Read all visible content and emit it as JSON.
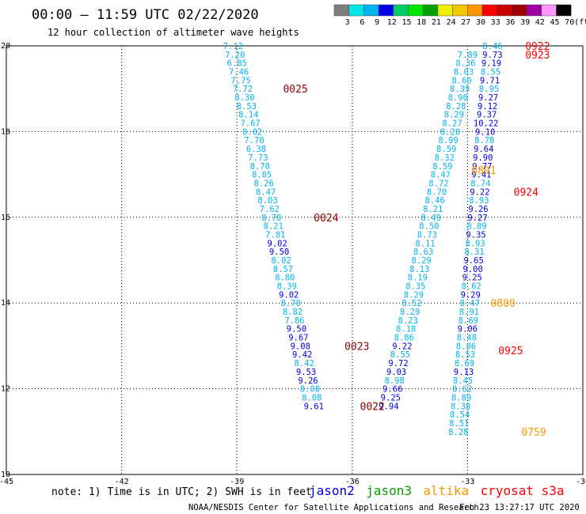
{
  "title": "00:00 – 11:59 UTC 02/22/2020",
  "subtitle": "12 hour collection of altimeter wave heights",
  "color_scale": {
    "ticks": [
      "3",
      "6",
      "9",
      "12",
      "15",
      "18",
      "21",
      "24",
      "27",
      "30",
      "33",
      "36",
      "39",
      "42",
      "45",
      "70"
    ],
    "unit": "(ft)",
    "colors": [
      "#7d7d7d",
      "#00e6e6",
      "#00b4f0",
      "#0000e6",
      "#00cd66",
      "#00e600",
      "#00a000",
      "#f0f000",
      "#f0c800",
      "#ff9600",
      "#ff0000",
      "#c80000",
      "#a00000",
      "#a000a0",
      "#ff96ff",
      "#000000"
    ]
  },
  "chart_data": {
    "type": "scatter",
    "xlim": [
      -45,
      -30
    ],
    "ylim": [
      10,
      20
    ],
    "x_ticks": [
      "-45",
      "-42",
      "-39",
      "-36",
      "-33",
      "-30"
    ],
    "y_ticks": [
      "10",
      "12",
      "14",
      "16",
      "18",
      "20"
    ],
    "grid": true,
    "colors_by_value": [
      {
        "max": 9,
        "color": "#00b4f0"
      },
      {
        "max": 12,
        "color": "#0000e6"
      }
    ],
    "tracks": [
      {
        "points": [
          [
            -39.1,
            20.0,
            "7.12"
          ],
          [
            -39.05,
            19.8,
            "7.20"
          ],
          [
            -39.0,
            19.6,
            "6.85"
          ],
          [
            -38.95,
            19.4,
            "7.46"
          ],
          [
            -38.9,
            19.2,
            "7.75"
          ],
          [
            -38.85,
            19.0,
            "7.72"
          ],
          [
            -38.8,
            18.8,
            "8.30"
          ],
          [
            -38.75,
            18.6,
            "8.53"
          ],
          [
            -38.7,
            18.4,
            "8.14"
          ],
          [
            -38.65,
            18.2,
            "7.67"
          ],
          [
            -38.6,
            18.0,
            "8.02"
          ],
          [
            -38.55,
            17.8,
            "7.70"
          ],
          [
            -38.5,
            17.6,
            "6.38"
          ],
          [
            -38.45,
            17.4,
            "7.73"
          ],
          [
            -38.4,
            17.2,
            "8.70"
          ],
          [
            -38.35,
            17.0,
            "8.05"
          ],
          [
            -38.3,
            16.8,
            "8.26"
          ],
          [
            -38.25,
            16.6,
            "8.47"
          ],
          [
            -38.2,
            16.4,
            "8.03"
          ],
          [
            -38.15,
            16.2,
            "7.62"
          ],
          [
            -38.1,
            16.0,
            "8.70"
          ],
          [
            -38.05,
            15.8,
            "8.21"
          ],
          [
            -38.0,
            15.6,
            "7.81"
          ],
          [
            -37.95,
            15.4,
            "9.02"
          ],
          [
            -37.9,
            15.2,
            "9.50"
          ],
          [
            -37.85,
            15.0,
            "8.02"
          ],
          [
            -37.8,
            14.8,
            "8.57"
          ],
          [
            -37.75,
            14.6,
            "8.80"
          ],
          [
            -37.7,
            14.4,
            "8.39"
          ],
          [
            -37.65,
            14.2,
            "9.02"
          ],
          [
            -37.6,
            14.0,
            "8.70"
          ],
          [
            -37.55,
            13.8,
            "8.82"
          ],
          [
            -37.5,
            13.6,
            "7.86"
          ],
          [
            -37.45,
            13.4,
            "9.50"
          ],
          [
            -37.4,
            13.2,
            "9.67"
          ],
          [
            -37.35,
            13.0,
            "9.08"
          ],
          [
            -37.3,
            12.8,
            "9.42"
          ],
          [
            -37.25,
            12.6,
            "8.42"
          ],
          [
            -37.2,
            12.4,
            "9.53"
          ],
          [
            -37.15,
            12.2,
            "9.26"
          ],
          [
            -37.1,
            12.0,
            "8.08"
          ],
          [
            -37.05,
            11.8,
            "8.08"
          ],
          [
            -37.0,
            11.6,
            "9.61"
          ]
        ]
      },
      {
        "points": [
          [
            -33.0,
            19.8,
            "7.89"
          ],
          [
            -33.05,
            19.6,
            "8.36"
          ],
          [
            -33.1,
            19.4,
            "8.03"
          ],
          [
            -33.15,
            19.2,
            "8.60"
          ],
          [
            -33.2,
            19.0,
            "8.39"
          ],
          [
            -33.25,
            18.8,
            "8.90"
          ],
          [
            -33.3,
            18.6,
            "8.28"
          ],
          [
            -33.35,
            18.4,
            "8.29"
          ],
          [
            -33.4,
            18.2,
            "8.27"
          ],
          [
            -33.45,
            18.0,
            "8.20"
          ],
          [
            -33.5,
            17.8,
            "8.99"
          ],
          [
            -33.55,
            17.6,
            "8.59"
          ],
          [
            -33.6,
            17.4,
            "8.32"
          ],
          [
            -33.65,
            17.2,
            "8.59"
          ],
          [
            -33.7,
            17.0,
            "8.47"
          ],
          [
            -33.75,
            16.8,
            "8.72"
          ],
          [
            -33.8,
            16.6,
            "8.70"
          ],
          [
            -33.85,
            16.4,
            "8.46"
          ],
          [
            -33.9,
            16.2,
            "8.21"
          ],
          [
            -33.95,
            16.0,
            "8.49"
          ],
          [
            -34.0,
            15.8,
            "8.50"
          ],
          [
            -34.05,
            15.6,
            "8.73"
          ],
          [
            -34.1,
            15.4,
            "8.11"
          ],
          [
            -34.15,
            15.2,
            "8.63"
          ],
          [
            -34.2,
            15.0,
            "8.29"
          ],
          [
            -34.25,
            14.8,
            "8.13"
          ],
          [
            -34.3,
            14.6,
            "8.19"
          ],
          [
            -34.35,
            14.4,
            "8.35"
          ],
          [
            -34.4,
            14.2,
            "8.29"
          ],
          [
            -34.45,
            14.0,
            "8.52"
          ],
          [
            -34.5,
            13.8,
            "8.29"
          ],
          [
            -34.55,
            13.6,
            "8.23"
          ],
          [
            -34.6,
            13.4,
            "8.18"
          ],
          [
            -34.65,
            13.2,
            "8.86"
          ],
          [
            -34.7,
            13.0,
            "9.22"
          ],
          [
            -34.75,
            12.8,
            "8.55"
          ],
          [
            -34.8,
            12.6,
            "9.72"
          ],
          [
            -34.85,
            12.4,
            "9.03"
          ],
          [
            -34.9,
            12.2,
            "8.98"
          ],
          [
            -34.95,
            12.0,
            "9.66"
          ],
          [
            -35.0,
            11.8,
            "9.25"
          ],
          [
            -35.05,
            11.6,
            "9.94"
          ]
        ]
      },
      {
        "points": [
          [
            -32.35,
            20.0,
            "8.46"
          ],
          [
            -32.35,
            19.8,
            "9.73"
          ],
          [
            -32.38,
            19.6,
            "9.19"
          ],
          [
            -32.4,
            19.4,
            "8.55"
          ],
          [
            -32.42,
            19.2,
            "9.71"
          ],
          [
            -32.44,
            19.0,
            "8.95"
          ],
          [
            -32.46,
            18.8,
            "9.27"
          ],
          [
            -32.48,
            18.6,
            "9.12"
          ],
          [
            -32.5,
            18.4,
            "9.37"
          ],
          [
            -32.52,
            18.2,
            "10.22"
          ],
          [
            -32.54,
            18.0,
            "9.10"
          ],
          [
            -32.56,
            17.8,
            "8.78"
          ],
          [
            -32.58,
            17.6,
            "9.64"
          ],
          [
            -32.6,
            17.4,
            "9.90"
          ],
          [
            -32.62,
            17.2,
            "9.77"
          ],
          [
            -32.64,
            17.0,
            "9.41"
          ],
          [
            -32.66,
            16.8,
            "8.74"
          ],
          [
            -32.68,
            16.6,
            "9.22"
          ],
          [
            -32.7,
            16.4,
            "8.93"
          ],
          [
            -32.72,
            16.2,
            "9.26"
          ],
          [
            -32.74,
            16.0,
            "9.27"
          ],
          [
            -32.76,
            15.8,
            "8.89"
          ],
          [
            -32.78,
            15.6,
            "9.35"
          ],
          [
            -32.8,
            15.4,
            "8.93"
          ],
          [
            -32.82,
            15.2,
            "8.31"
          ],
          [
            -32.84,
            15.0,
            "9.65"
          ],
          [
            -32.86,
            14.8,
            "9.00"
          ],
          [
            -32.88,
            14.6,
            "9.25"
          ],
          [
            -32.9,
            14.4,
            "8.62"
          ],
          [
            -32.92,
            14.2,
            "9.29"
          ],
          [
            -32.94,
            14.0,
            "8.47"
          ],
          [
            -32.96,
            13.8,
            "8.91"
          ],
          [
            -32.98,
            13.6,
            "8.69"
          ],
          [
            -33.0,
            13.4,
            "9.06"
          ],
          [
            -33.02,
            13.2,
            "8.48"
          ],
          [
            -33.04,
            13.0,
            "8.86"
          ],
          [
            -33.06,
            12.8,
            "8.53"
          ],
          [
            -33.08,
            12.6,
            "8.69"
          ],
          [
            -33.1,
            12.4,
            "9.13"
          ],
          [
            -33.12,
            12.2,
            "8.45"
          ],
          [
            -33.14,
            12.0,
            "8.62"
          ],
          [
            -33.16,
            11.8,
            "8.89"
          ],
          [
            -33.18,
            11.6,
            "8.38"
          ],
          [
            -33.2,
            11.4,
            "8.54"
          ],
          [
            -33.22,
            11.2,
            "8.51"
          ],
          [
            -33.24,
            11.0,
            "8.28"
          ]
        ]
      }
    ],
    "pass_labels": [
      {
        "text": "0025",
        "x": -37.8,
        "y": 19.0,
        "color": "#8b0000"
      },
      {
        "text": "0024",
        "x": -37.0,
        "y": 16.0,
        "color": "#8b0000"
      },
      {
        "text": "0023",
        "x": -36.2,
        "y": 13.0,
        "color": "#8b0000"
      },
      {
        "text": "0022",
        "x": -35.8,
        "y": 11.6,
        "color": "#8b0000"
      },
      {
        "text": "0922",
        "x": -31.5,
        "y": 20.0,
        "color": "#ff0000"
      },
      {
        "text": "0923",
        "x": -31.5,
        "y": 19.8,
        "color": "#ff0000"
      },
      {
        "text": "0924",
        "x": -31.8,
        "y": 16.6,
        "color": "#ff0000"
      },
      {
        "text": "0925",
        "x": -32.2,
        "y": 12.9,
        "color": "#ff0000"
      },
      {
        "text": "0801",
        "x": -32.9,
        "y": 17.1,
        "color": "#ff9600"
      },
      {
        "text": "0800",
        "x": -32.4,
        "y": 14.0,
        "color": "#ff9600"
      },
      {
        "text": "0759",
        "x": -31.6,
        "y": 11.0,
        "color": "#ff9600"
      }
    ]
  },
  "legend": [
    {
      "text": "jason2",
      "color": "#0000e6"
    },
    {
      "text": "jason3",
      "color": "#00a000"
    },
    {
      "text": "altika",
      "color": "#ff9600"
    },
    {
      "text": "cryosat s3a",
      "color": "#ff0000"
    }
  ],
  "note": "note: 1) Time is in UTC; 2) SWH is in feet",
  "credit": "NOAA/NESDIS Center for Satellite Applications and Research",
  "timestamp": "Feb 23 13:27:17 UTC 2020"
}
